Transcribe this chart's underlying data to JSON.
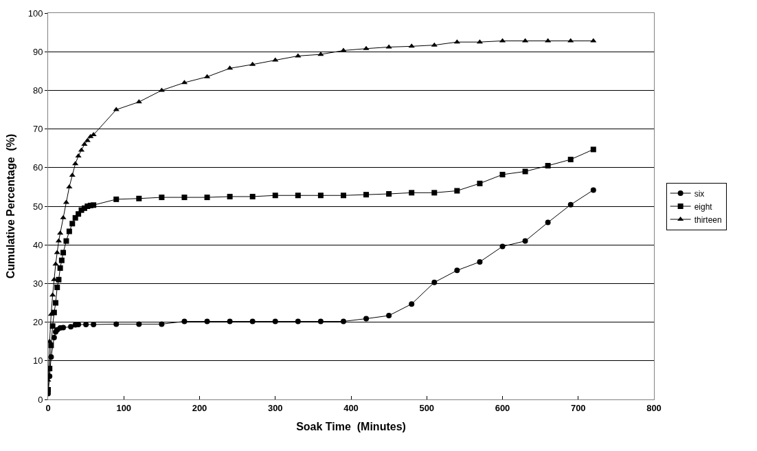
{
  "chart_data": {
    "type": "line",
    "xlabel": "Soak Time  (Minutes)",
    "ylabel": "Cumulative Percentage  (%)",
    "xlim": [
      0,
      800
    ],
    "xticks": [
      0,
      100,
      200,
      300,
      400,
      500,
      600,
      700,
      800
    ],
    "ylim": [
      0,
      100
    ],
    "yticks": [
      0,
      10,
      20,
      30,
      40,
      50,
      60,
      70,
      80,
      90,
      100
    ],
    "grid": "y",
    "legend": "right",
    "line_style": "solid",
    "series": [
      {
        "name": "six",
        "color": "#000000",
        "marker": "circle",
        "x": [
          0,
          2,
          4,
          8,
          10,
          12,
          16,
          20,
          30,
          36,
          40,
          50,
          60,
          90,
          120,
          150,
          180,
          210,
          240,
          270,
          300,
          330,
          360,
          390,
          420,
          450,
          480,
          510,
          540,
          570,
          600,
          630,
          660,
          690,
          720
        ],
        "values": [
          1.5,
          6,
          11,
          16,
          17.5,
          18,
          18.5,
          18.6,
          18.8,
          19.3,
          19.4,
          19.4,
          19.4,
          19.5,
          19.5,
          19.5,
          20.2,
          20.2,
          20.2,
          20.2,
          20.2,
          20.2,
          20.2,
          20.2,
          20.9,
          21.7,
          24.7,
          30.3,
          33.4,
          35.6,
          39.6,
          41,
          45.8,
          50.4,
          54.2
        ]
      },
      {
        "name": "eight",
        "color": "#000000",
        "marker": "square",
        "x": [
          0,
          2,
          4,
          6,
          8,
          10,
          12,
          14,
          16,
          18,
          20,
          24,
          28,
          32,
          36,
          40,
          44,
          48,
          52,
          56,
          60,
          90,
          120,
          150,
          180,
          210,
          240,
          270,
          300,
          330,
          360,
          390,
          420,
          450,
          480,
          510,
          540,
          570,
          600,
          630,
          660,
          690,
          720
        ],
        "values": [
          2.5,
          8,
          14,
          19,
          22.5,
          25,
          29,
          31,
          34,
          36,
          38,
          41,
          43.5,
          45.5,
          47,
          48,
          49,
          49.5,
          50,
          50.2,
          50.3,
          51.8,
          52,
          52.3,
          52.3,
          52.3,
          52.5,
          52.5,
          52.8,
          52.8,
          52.8,
          52.8,
          53,
          53.2,
          53.5,
          53.5,
          54,
          55.9,
          58.2,
          59,
          60.5,
          62.1,
          64.7
        ]
      },
      {
        "name": "thirteen",
        "color": "#000000",
        "marker": "triangle",
        "x": [
          0,
          2,
          4,
          6,
          8,
          10,
          12,
          14,
          16,
          20,
          24,
          28,
          32,
          36,
          40,
          44,
          48,
          52,
          56,
          60,
          90,
          120,
          150,
          180,
          210,
          240,
          270,
          300,
          330,
          360,
          390,
          420,
          450,
          480,
          510,
          540,
          570,
          600,
          630,
          660,
          690,
          720
        ],
        "values": [
          5,
          15,
          22,
          27,
          31,
          35,
          38,
          41,
          43,
          47,
          51,
          55,
          58,
          61,
          63,
          64.5,
          66,
          67,
          68,
          68.5,
          75,
          77,
          80,
          82,
          83.5,
          85.7,
          86.7,
          87.8,
          88.9,
          89.3,
          90.3,
          90.8,
          91.2,
          91.4,
          91.7,
          92.5,
          92.5,
          92.8,
          92.8,
          92.8,
          92.8,
          92.8
        ]
      }
    ]
  }
}
